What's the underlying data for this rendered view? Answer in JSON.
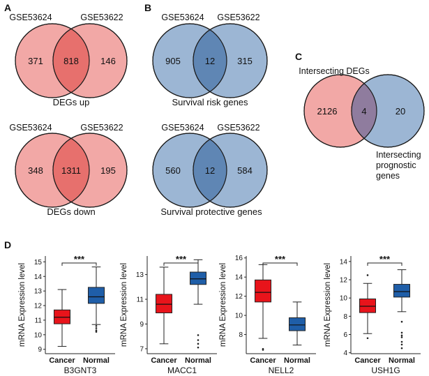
{
  "panels": {
    "A": {
      "letter": "A",
      "venns": [
        {
          "left_label": "GSE53624",
          "right_label": "GSE53622",
          "left_only": "371",
          "overlap": "818",
          "right_only": "146",
          "caption": "DEGs up"
        },
        {
          "left_label": "GSE53624",
          "right_label": "GSE53622",
          "left_only": "348",
          "overlap": "1311",
          "right_only": "195",
          "caption": "DEGs down"
        }
      ]
    },
    "B": {
      "letter": "B",
      "venns": [
        {
          "left_label": "GSE53624",
          "right_label": "GSE53622",
          "left_only": "905",
          "overlap": "12",
          "right_only": "315",
          "caption": "Survival risk genes"
        },
        {
          "left_label": "GSE53624",
          "right_label": "GSE53622",
          "left_only": "560",
          "overlap": "12",
          "right_only": "584",
          "caption": "Survival protective genes"
        }
      ]
    },
    "C": {
      "letter": "C",
      "left_label": "Intersecting DEGs",
      "left_only": "2126",
      "overlap": "4",
      "right_only": "20",
      "right_label_lines": [
        "Intersecting",
        "prognostic",
        "genes"
      ]
    },
    "D": {
      "letter": "D"
    }
  },
  "colors": {
    "venn_pink": "#f2a8a6",
    "venn_pink_overlap": "#e7706d",
    "venn_blue": "#9cb6d4",
    "venn_blue_overlap": "#5f86b4",
    "venn_mix_overlap": "#8f7c9e",
    "cancer": "#e8141b",
    "normal": "#1f5ea8"
  },
  "chart_data": [
    {
      "type": "boxplot",
      "gene": "B3GNT3",
      "ylabel": "mRNA Expression level",
      "categories": [
        "Cancer",
        "Normal"
      ],
      "significance": "***",
      "ylim": [
        8.7,
        15.4
      ],
      "yticks": [
        9,
        10,
        11,
        12,
        13,
        14,
        15
      ],
      "boxes": [
        {
          "whisker_low": 9.2,
          "q1": 10.75,
          "median": 11.2,
          "q3": 11.7,
          "whisker_high": 13.1,
          "outliers": []
        },
        {
          "whisker_low": 10.7,
          "q1": 12.15,
          "median": 12.6,
          "q3": 13.25,
          "whisker_high": 14.65,
          "outliers": [
            10.6,
            10.45,
            10.3,
            10.2
          ]
        }
      ]
    },
    {
      "type": "boxplot",
      "gene": "MACC1",
      "ylabel": "mRNA Expression level",
      "categories": [
        "Cancer",
        "Normal"
      ],
      "significance": "***",
      "ylim": [
        6.6,
        14.5
      ],
      "yticks": [
        7,
        9,
        11,
        13
      ],
      "boxes": [
        {
          "whisker_low": 7.4,
          "q1": 9.9,
          "median": 10.6,
          "q3": 11.4,
          "whisker_high": 13.6,
          "outliers": []
        },
        {
          "whisker_low": 10.6,
          "q1": 12.2,
          "median": 12.65,
          "q3": 13.2,
          "whisker_high": 14.2,
          "outliers": [
            8.1,
            7.7,
            7.4,
            7.1
          ]
        }
      ]
    },
    {
      "type": "boxplot",
      "gene": "NELL2",
      "ylabel": "mRNA Expression level",
      "categories": [
        "Cancer",
        "Normal"
      ],
      "significance": "***",
      "ylim": [
        6.0,
        16.2
      ],
      "yticks": [
        8,
        10,
        12,
        14,
        16
      ],
      "boxes": [
        {
          "whisker_low": 7.6,
          "q1": 11.4,
          "median": 12.4,
          "q3": 13.7,
          "whisker_high": 15.3,
          "outliers": [
            6.5,
            6.4
          ]
        },
        {
          "whisker_low": 6.9,
          "q1": 8.4,
          "median": 9.0,
          "q3": 9.75,
          "whisker_high": 11.4,
          "outliers": []
        }
      ]
    },
    {
      "type": "boxplot",
      "gene": "USH1G",
      "ylabel": "mRNA Expression level",
      "categories": [
        "Cancer",
        "Normal"
      ],
      "significance": "***",
      "ylim": [
        3.9,
        14.6
      ],
      "yticks": [
        4,
        6,
        8,
        10,
        12,
        14
      ],
      "boxes": [
        {
          "whisker_low": 6.1,
          "q1": 8.4,
          "median": 9.1,
          "q3": 9.9,
          "whisker_high": 11.6,
          "outliers": [
            12.5,
            5.6
          ]
        },
        {
          "whisker_low": 8.5,
          "q1": 10.1,
          "median": 10.7,
          "q3": 11.5,
          "whisker_high": 13.1,
          "outliers": [
            7.4,
            6.2,
            5.9,
            5.7,
            5.2,
            4.9,
            4.5
          ]
        }
      ]
    }
  ]
}
